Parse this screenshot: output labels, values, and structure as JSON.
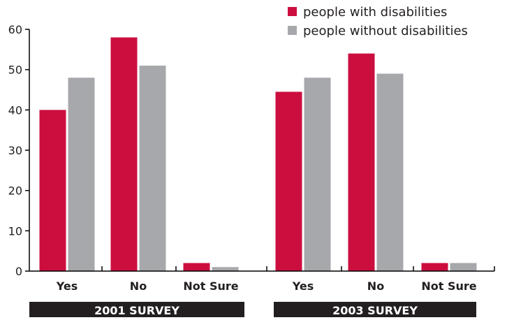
{
  "chart_data": {
    "type": "bar",
    "groups": [
      {
        "label": "2001 SURVEY",
        "categories": [
          "Yes",
          "No",
          "Not Sure"
        ]
      },
      {
        "label": "2003 SURVEY",
        "categories": [
          "Yes",
          "No",
          "Not Sure"
        ]
      }
    ],
    "series": [
      {
        "name": "people with disabilities",
        "color": "#cc0e3f",
        "values": [
          40,
          58,
          2,
          44.5,
          54,
          2
        ]
      },
      {
        "name": "people without disabilities",
        "color": "#a7a8ab",
        "values": [
          48,
          51,
          1,
          48,
          49,
          2
        ]
      }
    ],
    "ylim": [
      0,
      60
    ],
    "yticks": [
      0,
      10,
      20,
      30,
      40,
      50,
      60
    ],
    "grid": false,
    "legend": "top-right",
    "colors": {
      "axis": "#000000",
      "group_label_bg": "#231f20",
      "group_label_text": "#ffffff"
    }
  }
}
